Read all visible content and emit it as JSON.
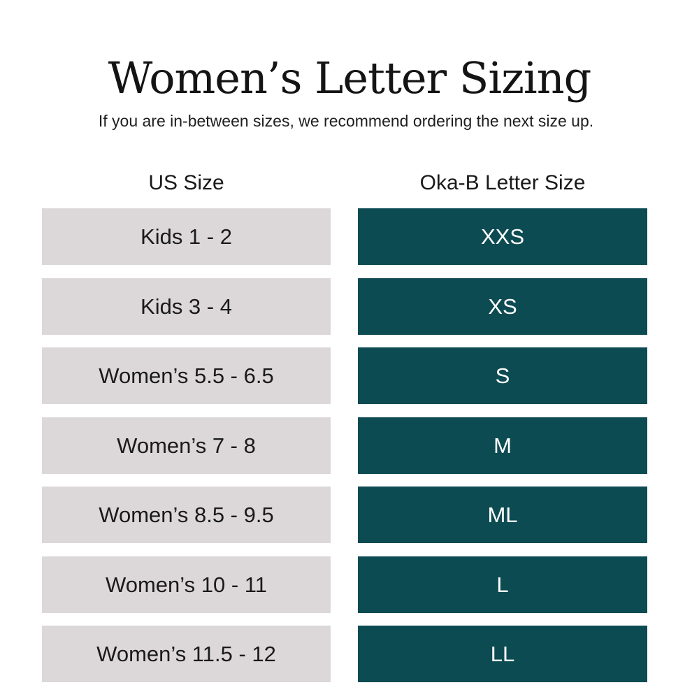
{
  "title": "Women’s Letter Sizing",
  "subtitle": "If you are in-between sizes, we recommend ordering the next size up.",
  "colors": {
    "us_cell_bg": "#dcd8da",
    "letter_cell_bg": "#0d4b52",
    "letter_cell_text": "#ffffff"
  },
  "table": {
    "headers": {
      "us": "US Size",
      "letter": "Oka-B Letter Size"
    },
    "rows": [
      {
        "us": "Kids 1 - 2",
        "letter": "XXS"
      },
      {
        "us": "Kids 3 - 4",
        "letter": "XS"
      },
      {
        "us": "Women’s 5.5 - 6.5",
        "letter": "S"
      },
      {
        "us": "Women’s 7 - 8",
        "letter": "M"
      },
      {
        "us": "Women’s 8.5 - 9.5",
        "letter": "ML"
      },
      {
        "us": "Women’s 10 - 11",
        "letter": "L"
      },
      {
        "us": "Women’s 11.5 - 12",
        "letter": "LL"
      }
    ]
  }
}
